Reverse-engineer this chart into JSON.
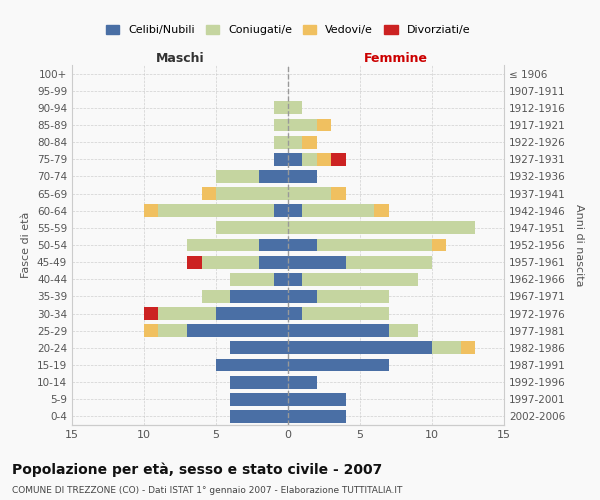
{
  "age_groups": [
    "0-4",
    "5-9",
    "10-14",
    "15-19",
    "20-24",
    "25-29",
    "30-34",
    "35-39",
    "40-44",
    "45-49",
    "50-54",
    "55-59",
    "60-64",
    "65-69",
    "70-74",
    "75-79",
    "80-84",
    "85-89",
    "90-94",
    "95-99",
    "100+"
  ],
  "birth_years": [
    "2002-2006",
    "1997-2001",
    "1992-1996",
    "1987-1991",
    "1982-1986",
    "1977-1981",
    "1972-1976",
    "1967-1971",
    "1962-1966",
    "1957-1961",
    "1952-1956",
    "1947-1951",
    "1942-1946",
    "1937-1941",
    "1932-1936",
    "1927-1931",
    "1922-1926",
    "1917-1921",
    "1912-1916",
    "1907-1911",
    "≤ 1906"
  ],
  "males": {
    "celibi": [
      4,
      4,
      4,
      5,
      4,
      7,
      5,
      4,
      1,
      2,
      2,
      0,
      1,
      0,
      2,
      1,
      0,
      0,
      0,
      0,
      0
    ],
    "coniugati": [
      0,
      0,
      0,
      0,
      0,
      2,
      4,
      2,
      3,
      4,
      5,
      5,
      8,
      5,
      3,
      0,
      1,
      1,
      1,
      0,
      0
    ],
    "vedovi": [
      0,
      0,
      0,
      0,
      0,
      1,
      0,
      0,
      0,
      0,
      0,
      0,
      1,
      1,
      0,
      0,
      0,
      0,
      0,
      0,
      0
    ],
    "divorziati": [
      0,
      0,
      0,
      0,
      0,
      0,
      1,
      0,
      0,
      1,
      0,
      0,
      0,
      0,
      0,
      0,
      0,
      0,
      0,
      0,
      0
    ]
  },
  "females": {
    "celibi": [
      4,
      4,
      2,
      7,
      10,
      7,
      1,
      2,
      1,
      4,
      2,
      0,
      1,
      0,
      2,
      1,
      0,
      0,
      0,
      0,
      0
    ],
    "coniugati": [
      0,
      0,
      0,
      0,
      2,
      2,
      6,
      5,
      8,
      6,
      8,
      13,
      5,
      3,
      0,
      1,
      1,
      2,
      1,
      0,
      0
    ],
    "vedovi": [
      0,
      0,
      0,
      0,
      1,
      0,
      0,
      0,
      0,
      0,
      1,
      0,
      1,
      1,
      0,
      1,
      1,
      1,
      0,
      0,
      0
    ],
    "divorziati": [
      0,
      0,
      0,
      0,
      0,
      0,
      0,
      0,
      0,
      0,
      0,
      0,
      0,
      0,
      0,
      1,
      0,
      0,
      0,
      0,
      0
    ]
  },
  "colors": {
    "celibi": "#4a6fa5",
    "coniugati": "#c5d5a0",
    "vedovi": "#f0c060",
    "divorziati": "#cc2222"
  },
  "legend_labels": [
    "Celibi/Nubili",
    "Coniugati/e",
    "Vedovi/e",
    "Divorziati/e"
  ],
  "title": "Popolazione per età, sesso e stato civile - 2007",
  "subtitle": "COMUNE DI TREZZONE (CO) - Dati ISTAT 1° gennaio 2007 - Elaborazione TUTTITALIA.IT",
  "xlabel_left": "Maschi",
  "xlabel_right": "Femmine",
  "ylabel_left": "Fasce di età",
  "ylabel_right": "Anni di nascita",
  "xlim": 15,
  "background_color": "#f9f9f9",
  "grid_color": "#cccccc"
}
